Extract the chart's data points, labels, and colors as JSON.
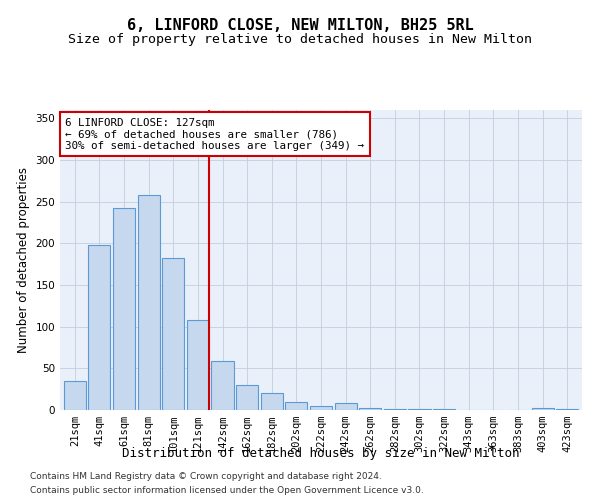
{
  "title": "6, LINFORD CLOSE, NEW MILTON, BH25 5RL",
  "subtitle": "Size of property relative to detached houses in New Milton",
  "xlabel": "Distribution of detached houses by size in New Milton",
  "ylabel": "Number of detached properties",
  "categories": [
    "21sqm",
    "41sqm",
    "61sqm",
    "81sqm",
    "101sqm",
    "121sqm",
    "142sqm",
    "162sqm",
    "182sqm",
    "202sqm",
    "222sqm",
    "242sqm",
    "262sqm",
    "282sqm",
    "302sqm",
    "322sqm",
    "343sqm",
    "363sqm",
    "383sqm",
    "403sqm",
    "423sqm"
  ],
  "values": [
    35,
    198,
    242,
    258,
    183,
    108,
    59,
    30,
    20,
    10,
    5,
    8,
    2,
    1,
    1,
    1,
    0,
    0,
    0,
    2,
    1
  ],
  "bar_color": "#c5d8ee",
  "bar_edge_color": "#5b9bd5",
  "background_color": "#eaf0fa",
  "annotation_line1": "6 LINFORD CLOSE: 127sqm",
  "annotation_line2": "← 69% of detached houses are smaller (786)",
  "annotation_line3": "30% of semi-detached houses are larger (349) →",
  "annotation_box_color": "#ffffff",
  "annotation_box_edge_color": "#cc0000",
  "vline_color": "#cc0000",
  "vline_x_idx": 5.45,
  "ylim": [
    0,
    360
  ],
  "yticks": [
    0,
    50,
    100,
    150,
    200,
    250,
    300,
    350
  ],
  "footer1": "Contains HM Land Registry data © Crown copyright and database right 2024.",
  "footer2": "Contains public sector information licensed under the Open Government Licence v3.0.",
  "title_fontsize": 11,
  "subtitle_fontsize": 9.5,
  "xlabel_fontsize": 9,
  "ylabel_fontsize": 8.5,
  "tick_fontsize": 7.5,
  "footer_fontsize": 6.5
}
